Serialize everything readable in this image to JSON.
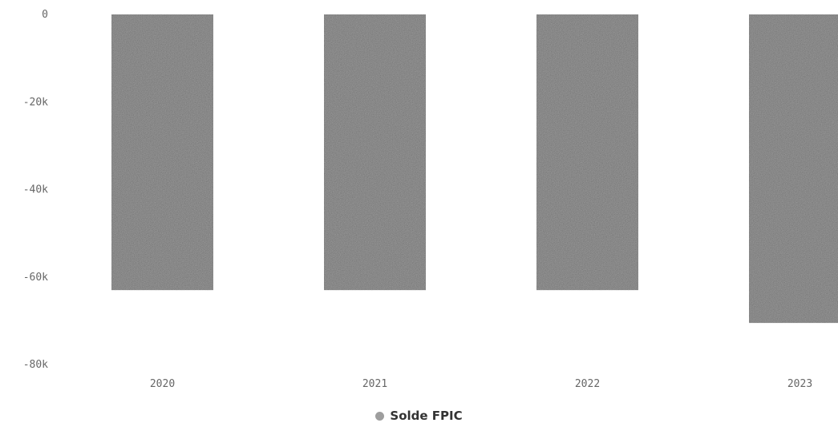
{
  "chart_data": {
    "type": "bar",
    "categories": [
      "2020",
      "2021",
      "2022",
      "2023"
    ],
    "series": [
      {
        "name": "Solde FPIC",
        "values": [
          -63000,
          -63000,
          -63000,
          -70500
        ],
        "color": "#9e9e9e"
      }
    ],
    "ylim": [
      -80000,
      0
    ],
    "yticks": [
      0,
      -20000,
      -40000,
      -60000,
      -80000
    ],
    "ytick_labels": [
      "0",
      "-20k",
      "-40k",
      "-60k",
      "-80k"
    ],
    "grid": false,
    "legend_position": "bottom-center"
  }
}
